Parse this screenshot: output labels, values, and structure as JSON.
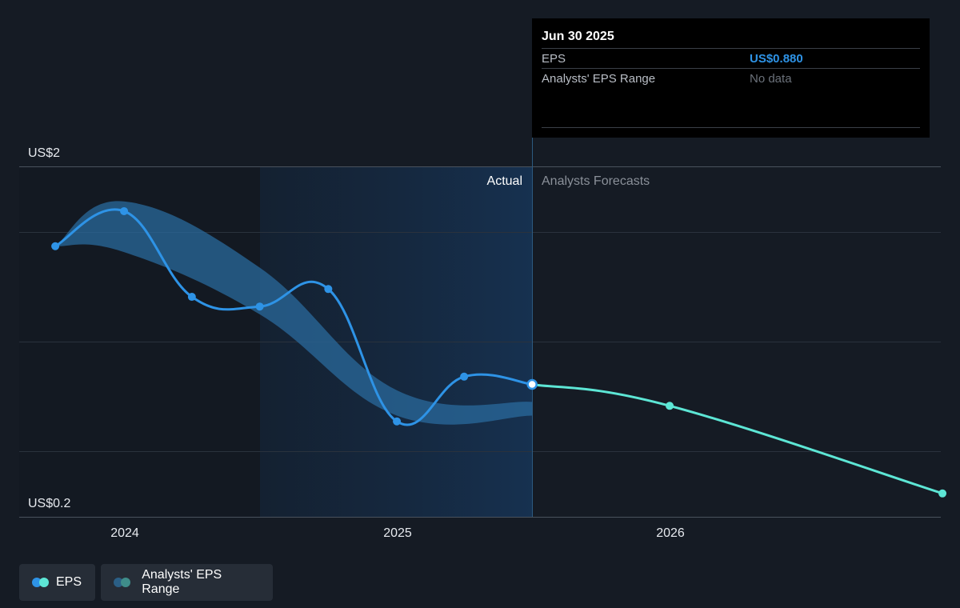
{
  "tooltip": {
    "date": "Jun 30 2025",
    "eps_label": "EPS",
    "eps_value": "US$0.880",
    "range_label": "Analysts' EPS Range",
    "range_value": "No data"
  },
  "legend": {
    "eps_label": "EPS",
    "range_label": "Analysts' EPS Range"
  },
  "colors": {
    "background": "#151b24",
    "eps_actual": "#2e93e6",
    "eps_forecast": "#5de6d5",
    "range_band": "#2a6a9c"
  },
  "chart_data": {
    "type": "line",
    "y_top_label": "US$2",
    "y_bottom_label": "US$0.2",
    "ylim": [
      0.2,
      2.0
    ],
    "x_ticks": [
      "2024",
      "2025",
      "2026"
    ],
    "region_actual_label": "Actual",
    "region_forecast_label": "Analysts Forecasts",
    "grid": true,
    "series": [
      {
        "name": "EPS",
        "segment": "actual",
        "points": [
          {
            "x": "2023-09-30",
            "y": 1.59
          },
          {
            "x": "2023-12-31",
            "y": 1.77
          },
          {
            "x": "2024-03-31",
            "y": 1.33
          },
          {
            "x": "2024-06-30",
            "y": 1.28
          },
          {
            "x": "2024-09-30",
            "y": 1.37
          },
          {
            "x": "2024-12-31",
            "y": 0.69
          },
          {
            "x": "2025-03-31",
            "y": 0.92
          },
          {
            "x": "2025-06-30",
            "y": 0.88
          }
        ]
      },
      {
        "name": "EPS",
        "segment": "forecast",
        "points": [
          {
            "x": "2025-06-30",
            "y": 0.88
          },
          {
            "x": "2025-12-31",
            "y": 0.77
          },
          {
            "x": "2026-12-31",
            "y": 0.32
          }
        ]
      }
    ],
    "range_band": {
      "name": "Analysts' EPS Range",
      "upper": [
        {
          "x": "2023-09-30",
          "y": 1.59
        },
        {
          "x": "2023-12-31",
          "y": 1.82
        },
        {
          "x": "2024-06-30",
          "y": 1.48
        },
        {
          "x": "2024-12-31",
          "y": 0.85
        },
        {
          "x": "2025-06-30",
          "y": 0.79
        }
      ],
      "lower": [
        {
          "x": "2023-09-30",
          "y": 1.59
        },
        {
          "x": "2023-12-31",
          "y": 1.56
        },
        {
          "x": "2024-06-30",
          "y": 1.24
        },
        {
          "x": "2024-12-31",
          "y": 0.72
        },
        {
          "x": "2025-06-30",
          "y": 0.72
        }
      ]
    }
  }
}
